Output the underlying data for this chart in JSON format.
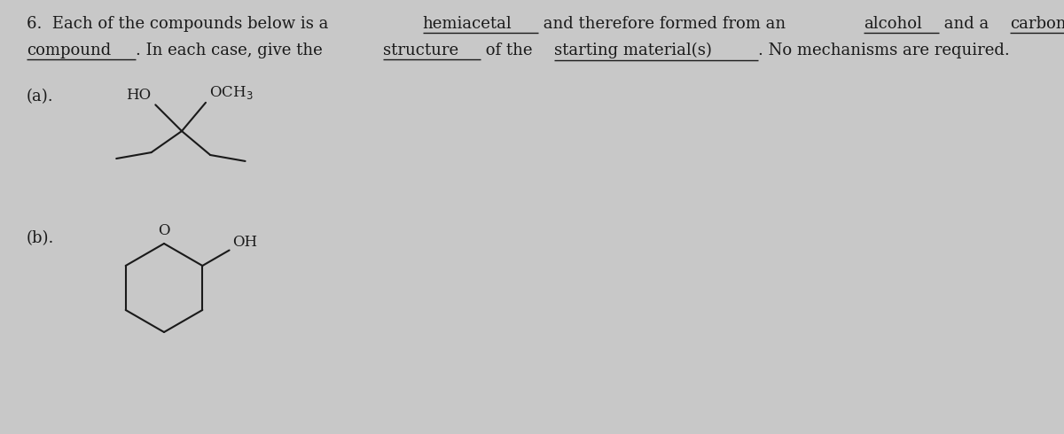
{
  "bg_color": "#c8c8c8",
  "text_color": "#1a1a1a",
  "fig_width": 12.0,
  "fig_height": 4.9,
  "dpi": 100,
  "line1_segments": [
    [
      "6.  Each of the compounds below is a ",
      false
    ],
    [
      "hemiacetal",
      true
    ],
    [
      " and therefore formed from an ",
      false
    ],
    [
      "alcohol",
      true
    ],
    [
      " and a ",
      false
    ],
    [
      "carbonyl",
      true
    ]
  ],
  "line2_segments": [
    [
      "compound",
      true
    ],
    [
      ". In each case, give the ",
      false
    ],
    [
      "structure",
      true
    ],
    [
      " of the ",
      false
    ],
    [
      "starting material(s)",
      true
    ],
    [
      ". No mechanisms are required.",
      false
    ]
  ],
  "font_size": 13.0,
  "font_family": "DejaVu Serif"
}
